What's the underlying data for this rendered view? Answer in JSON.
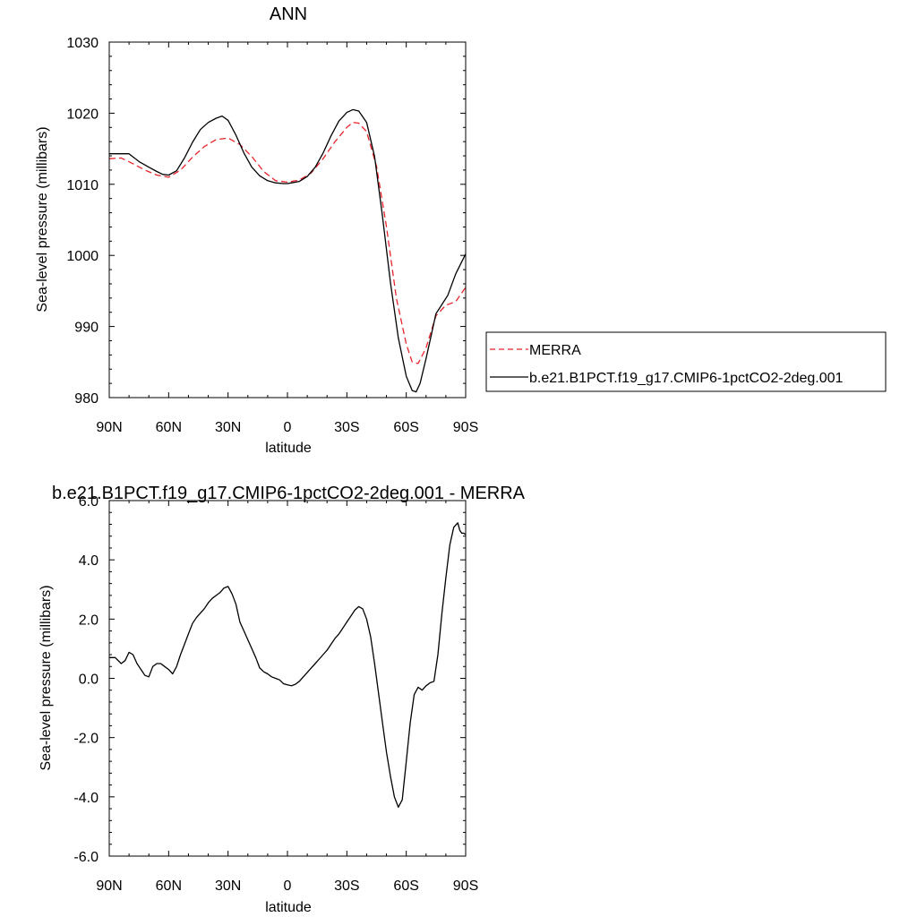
{
  "chart_data": [
    {
      "type": "line",
      "title": "ANN",
      "xlabel": "latitude",
      "ylabel": "Sea-level pressure (millibars)",
      "xlim": [
        90,
        -90
      ],
      "ylim": [
        980,
        1030
      ],
      "x_ticks": [
        90,
        60,
        30,
        0,
        -30,
        -60,
        -90
      ],
      "x_tick_labels": [
        "90N",
        "60N",
        "30N",
        "0",
        "30S",
        "60S",
        "90S"
      ],
      "y_ticks": [
        980,
        990,
        1000,
        1010,
        1020,
        1030
      ],
      "y_tick_labels": [
        "980",
        "990",
        "1000",
        "1010",
        "1020",
        "1030"
      ],
      "legend_position": "right",
      "series": [
        {
          "name": "MERRA",
          "color": "#e8242b",
          "style": "dashed",
          "x": [
            90,
            84,
            78,
            72,
            66,
            60,
            54,
            48,
            42,
            36,
            30,
            24,
            18,
            12,
            6,
            0,
            -6,
            -12,
            -18,
            -24,
            -30,
            -33,
            -36,
            -40,
            -45,
            -50,
            -55,
            -60,
            -63,
            -66,
            -70,
            -75,
            -80,
            -85,
            -90
          ],
          "y": [
            1013.6,
            1013.7,
            1012.9,
            1012.0,
            1011.3,
            1011.0,
            1012.0,
            1013.8,
            1015.3,
            1016.3,
            1016.5,
            1015.6,
            1013.9,
            1011.8,
            1010.5,
            1010.3,
            1010.6,
            1011.6,
            1013.6,
            1016.0,
            1018.0,
            1018.7,
            1018.6,
            1017.4,
            1012.5,
            1004.0,
            994.0,
            987.5,
            985.0,
            984.8,
            987.0,
            991.5,
            993.0,
            993.5,
            995.5
          ]
        },
        {
          "name": "b.e21.B1PCT.f19_g17.CMIP6-1pctCO2-2deg.001",
          "color": "#000000",
          "style": "solid",
          "x": [
            90,
            84,
            80,
            75,
            70,
            66,
            63,
            60,
            56,
            52,
            48,
            44,
            40,
            36,
            33,
            30,
            26,
            22,
            18,
            14,
            10,
            6,
            2,
            0,
            -2,
            -6,
            -10,
            -14,
            -18,
            -22,
            -26,
            -30,
            -33,
            -36,
            -40,
            -44,
            -48,
            -52,
            -56,
            -60,
            -63,
            -65,
            -67,
            -70,
            -72,
            -75,
            -78,
            -81,
            -85,
            -90
          ],
          "y": [
            1014.3,
            1014.3,
            1014.3,
            1013.2,
            1012.4,
            1011.8,
            1011.4,
            1011.3,
            1011.9,
            1013.7,
            1015.9,
            1017.7,
            1018.7,
            1019.3,
            1019.6,
            1019.0,
            1016.9,
            1014.4,
            1012.4,
            1011.2,
            1010.5,
            1010.2,
            1010.1,
            1010.1,
            1010.2,
            1010.4,
            1011.1,
            1012.4,
            1014.4,
            1016.8,
            1018.9,
            1020.1,
            1020.5,
            1020.3,
            1018.7,
            1013.9,
            1005.5,
            996.2,
            988.4,
            983.0,
            981.0,
            980.8,
            982.0,
            985.5,
            988.0,
            991.8,
            993.1,
            994.4,
            997.4,
            1000.2
          ]
        }
      ]
    },
    {
      "type": "line",
      "title": "b.e21.B1PCT.f19_g17.CMIP6-1pctCO2-2deg.001 - MERRA",
      "xlabel": "latitude",
      "ylabel": "Sea-level pressure (millibars)",
      "xlim": [
        90,
        -90
      ],
      "ylim": [
        -6,
        6
      ],
      "x_ticks": [
        90,
        60,
        30,
        0,
        -30,
        -60,
        -90
      ],
      "x_tick_labels": [
        "90N",
        "60N",
        "30N",
        "0",
        "30S",
        "60S",
        "90S"
      ],
      "y_ticks": [
        -6,
        -4,
        -2,
        0,
        2,
        4,
        6
      ],
      "y_tick_labels": [
        "-6.0",
        "-4.0",
        "-2.0",
        "0.0",
        "2.0",
        "4.0",
        "6.0"
      ],
      "series": [
        {
          "color": "#000000",
          "style": "solid",
          "x": [
            90,
            87,
            84,
            82,
            80,
            78,
            76,
            74,
            72,
            70,
            68,
            66,
            64,
            62,
            60,
            58,
            56,
            54,
            52,
            50,
            48,
            46,
            44,
            42,
            40,
            38,
            36,
            34,
            32,
            30,
            28,
            26,
            24,
            22,
            20,
            18,
            16,
            14,
            12,
            10,
            8,
            6,
            4,
            2,
            0,
            -2,
            -4,
            -6,
            -8,
            -10,
            -12,
            -14,
            -16,
            -18,
            -20,
            -22,
            -24,
            -26,
            -28,
            -30,
            -32,
            -34,
            -36,
            -38,
            -40,
            -42,
            -44,
            -46,
            -48,
            -50,
            -52,
            -54,
            -56,
            -58,
            -60,
            -62,
            -64,
            -66,
            -68,
            -70,
            -72,
            -74,
            -76,
            -78,
            -80,
            -82,
            -84,
            -86,
            -87,
            -88,
            -89,
            -90
          ],
          "y": [
            0.7,
            0.7,
            0.5,
            0.6,
            0.88,
            0.8,
            0.5,
            0.3,
            0.1,
            0.05,
            0.4,
            0.5,
            0.5,
            0.4,
            0.3,
            0.15,
            0.4,
            0.8,
            1.15,
            1.5,
            1.85,
            2.05,
            2.2,
            2.35,
            2.55,
            2.7,
            2.8,
            2.9,
            3.05,
            3.1,
            2.85,
            2.5,
            1.9,
            1.6,
            1.3,
            1.0,
            0.7,
            0.35,
            0.22,
            0.15,
            0.05,
            0.0,
            -0.05,
            -0.18,
            -0.22,
            -0.25,
            -0.2,
            -0.1,
            0.05,
            0.2,
            0.35,
            0.5,
            0.65,
            0.8,
            0.95,
            1.15,
            1.35,
            1.5,
            1.7,
            1.9,
            2.1,
            2.3,
            2.42,
            2.35,
            2.0,
            1.4,
            0.5,
            -0.5,
            -1.5,
            -2.5,
            -3.3,
            -4.0,
            -4.35,
            -4.1,
            -2.8,
            -1.5,
            -0.55,
            -0.3,
            -0.4,
            -0.25,
            -0.15,
            -0.1,
            0.8,
            2.2,
            3.4,
            4.5,
            5.1,
            5.25,
            5.0,
            4.9,
            4.9,
            4.85
          ]
        }
      ]
    }
  ]
}
